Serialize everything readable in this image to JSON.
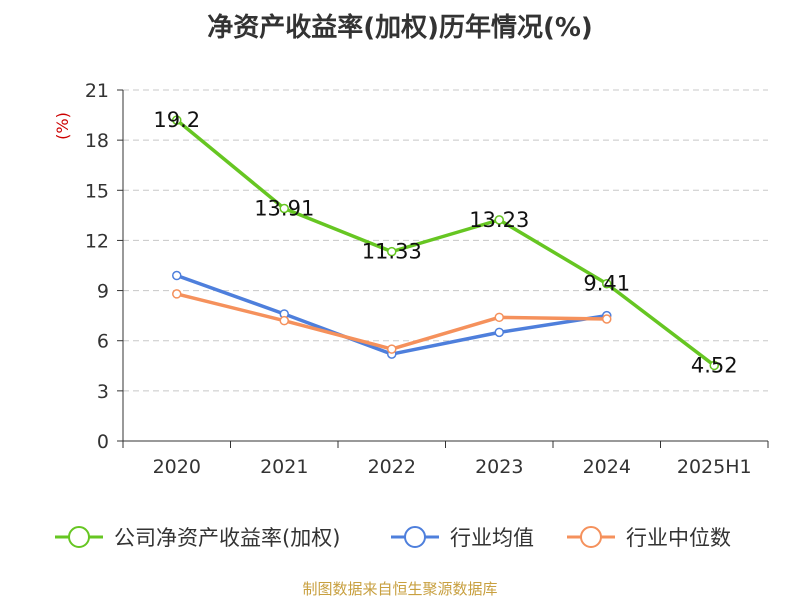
{
  "chart_data": {
    "type": "line",
    "title": "净资产收益率(加权)历年情况(%)",
    "ylabel": "(%)",
    "xlabel": "",
    "ylim": [
      0,
      21
    ],
    "yticks": [
      0,
      3,
      6,
      9,
      12,
      15,
      18,
      21
    ],
    "categories": [
      "2020",
      "2021",
      "2022",
      "2023",
      "2024",
      "2025H1"
    ],
    "grid": true,
    "legend_position": "bottom",
    "series": [
      {
        "name": "公司净资产收益率(加权)",
        "color": "#66c622",
        "values": [
          19.2,
          13.91,
          11.33,
          13.23,
          9.41,
          4.52
        ],
        "labels": [
          "19.2",
          "13.91",
          "11.33",
          "13.23",
          "9.41",
          "4.52"
        ]
      },
      {
        "name": "行业均值",
        "color": "#4e7fdc",
        "values": [
          9.9,
          7.6,
          5.2,
          6.5,
          7.5,
          null
        ]
      },
      {
        "name": "行业中位数",
        "color": "#f5915c",
        "values": [
          8.8,
          7.2,
          5.5,
          7.4,
          7.3,
          null
        ]
      }
    ],
    "source": "制图数据来自恒生聚源数据库"
  }
}
